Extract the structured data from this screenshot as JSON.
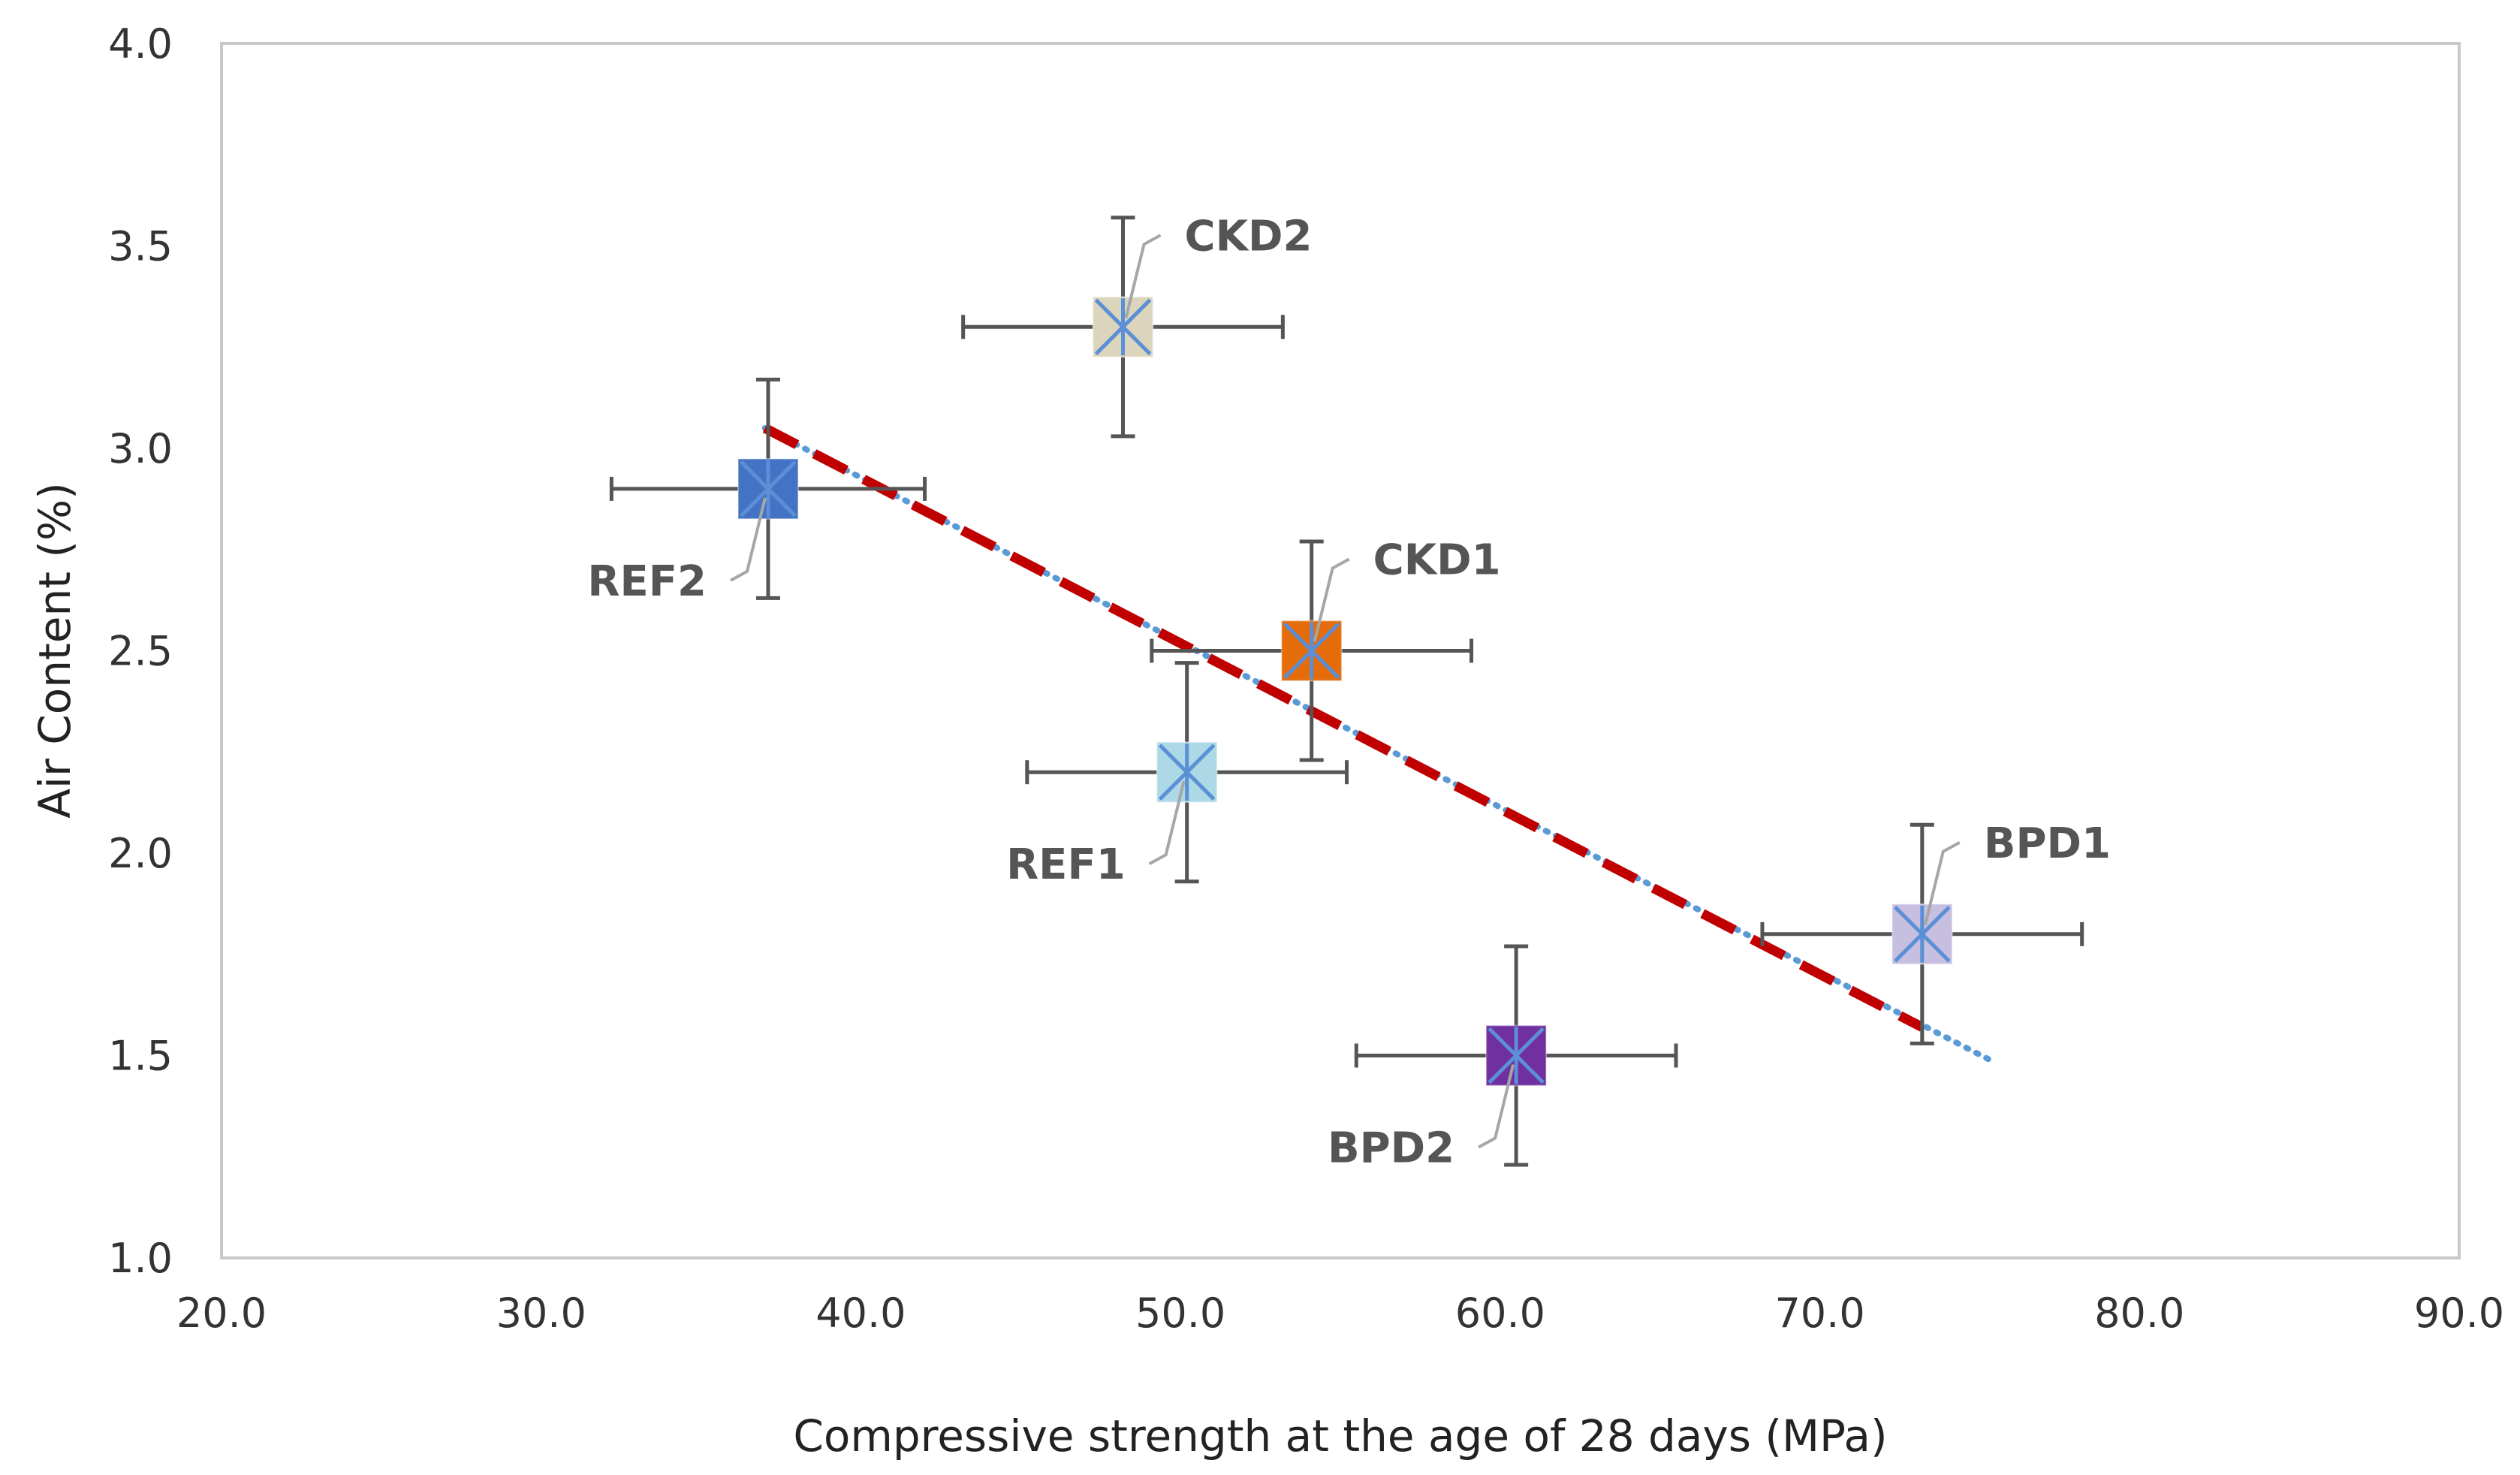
{
  "chart_data": {
    "type": "scatter",
    "title": "",
    "xlabel": "Compressive strength at the age of 28 days (MPa)",
    "ylabel": "Air Content (%)",
    "xlim": [
      20,
      90
    ],
    "ylim": [
      1,
      4
    ],
    "x_ticks": [
      "20.0",
      "30.0",
      "40.0",
      "50.0",
      "60.0",
      "70.0",
      "80.0",
      "90.0"
    ],
    "y_ticks": [
      "1.0",
      "1.5",
      "2.0",
      "2.5",
      "3.0",
      "3.5",
      "4.0"
    ],
    "grid": false,
    "legend": "none",
    "series": [
      {
        "name": "REF2",
        "x": 37.1,
        "y": 2.9,
        "x_err": 4.9,
        "y_err": 0.27,
        "color": "#4472c4",
        "label_side": "left"
      },
      {
        "name": "CKD2",
        "x": 48.2,
        "y": 3.3,
        "x_err": 5.0,
        "y_err": 0.27,
        "color": "#dcd5be",
        "label_side": "right"
      },
      {
        "name": "CKD1",
        "x": 54.1,
        "y": 2.5,
        "x_err": 5.0,
        "y_err": 0.27,
        "color": "#e46c0a",
        "label_side": "right"
      },
      {
        "name": "REF1",
        "x": 50.2,
        "y": 2.2,
        "x_err": 5.0,
        "y_err": 0.27,
        "color": "#add8e6",
        "label_side": "left"
      },
      {
        "name": "BPD1",
        "x": 73.2,
        "y": 1.8,
        "x_err": 5.0,
        "y_err": 0.27,
        "color": "#c7bfe0",
        "label_side": "right"
      },
      {
        "name": "BPD2",
        "x": 60.5,
        "y": 1.5,
        "x_err": 5.0,
        "y_err": 0.27,
        "color": "#7030a0",
        "label_side": "left"
      }
    ],
    "fit_line": {
      "x": [
        37.0,
        73.2
      ],
      "y": [
        3.05,
        1.57
      ],
      "color": "#c00000",
      "style": "dashed"
    },
    "trend_line": {
      "x": [
        37.0,
        75.3
      ],
      "y": [
        3.05,
        1.49
      ],
      "color": "#5b9bd5",
      "style": "dotted"
    }
  }
}
